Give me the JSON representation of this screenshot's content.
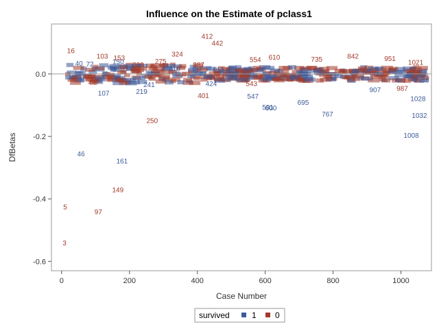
{
  "chart_data": {
    "type": "scatter",
    "title": "Influence on the Estimate of pclass1",
    "xlabel": "Case Number",
    "ylabel": "DfBetas",
    "xlim": [
      -30,
      1090
    ],
    "ylim": [
      -0.63,
      0.16
    ],
    "xticks": [
      0,
      200,
      400,
      600,
      800,
      1000
    ],
    "xtick_labels": [
      "0",
      "200",
      "400",
      "600",
      "800",
      "1000"
    ],
    "yticks": [
      0.0,
      -0.2,
      -0.4,
      -0.6
    ],
    "ytick_labels": [
      "0.0",
      "-0.2",
      "-0.4",
      "-0.6"
    ],
    "reference_line_y": 0.0,
    "grid": false,
    "legend": {
      "title": "survived",
      "placement": "bottom-center",
      "entries": [
        {
          "name": "1",
          "color": "#3d5a99"
        },
        {
          "name": "0",
          "color": "#a23a2a"
        }
      ]
    },
    "series": [
      {
        "name": "1",
        "color": "#3d5a99",
        "points": [
          {
            "x": 46,
            "y": -0.255,
            "label": "46"
          },
          {
            "x": 107,
            "y": -0.06,
            "label": "107"
          },
          {
            "x": 161,
            "y": -0.278,
            "label": "161"
          },
          {
            "x": 219,
            "y": -0.055,
            "label": "219"
          },
          {
            "x": 547,
            "y": -0.07,
            "label": "547"
          },
          {
            "x": 591,
            "y": -0.105,
            "label": "591"
          },
          {
            "x": 600,
            "y": -0.108,
            "label": "600"
          },
          {
            "x": 695,
            "y": -0.09,
            "label": "695"
          },
          {
            "x": 767,
            "y": -0.128,
            "label": "767"
          },
          {
            "x": 907,
            "y": -0.05,
            "label": "907"
          },
          {
            "x": 1008,
            "y": -0.195,
            "label": "1008"
          },
          {
            "x": 1028,
            "y": -0.078,
            "label": "1028"
          },
          {
            "x": 1032,
            "y": -0.132,
            "label": "1032"
          },
          {
            "x": 40,
            "y": 0.035,
            "label": "40"
          },
          {
            "x": 72,
            "y": 0.033,
            "label": "72"
          },
          {
            "x": 150,
            "y": 0.04,
            "label": "150"
          },
          {
            "x": 316,
            "y": 0.018,
            "label": "316"
          },
          {
            "x": 443,
            "y": 0.015,
            "label": "443"
          },
          {
            "x": 241,
            "y": -0.033,
            "label": "241"
          },
          {
            "x": 424,
            "y": -0.03,
            "label": "424"
          },
          {
            "x": 1038,
            "y": -0.018,
            "label": "1038"
          }
        ]
      },
      {
        "name": "0",
        "color": "#a23a2a",
        "points": [
          {
            "x": 3,
            "y": -0.54,
            "label": "3"
          },
          {
            "x": 5,
            "y": -0.425,
            "label": "5"
          },
          {
            "x": 16,
            "y": 0.075,
            "label": "16"
          },
          {
            "x": 97,
            "y": -0.44,
            "label": "97"
          },
          {
            "x": 103,
            "y": 0.058,
            "label": "103"
          },
          {
            "x": 149,
            "y": -0.37,
            "label": "149"
          },
          {
            "x": 153,
            "y": 0.052,
            "label": "153"
          },
          {
            "x": 250,
            "y": -0.148,
            "label": "250"
          },
          {
            "x": 275,
            "y": 0.042,
            "label": "275"
          },
          {
            "x": 324,
            "y": 0.065,
            "label": "324"
          },
          {
            "x": 387,
            "y": 0.03,
            "label": "387"
          },
          {
            "x": 401,
            "y": -0.068,
            "label": "401"
          },
          {
            "x": 412,
            "y": 0.122,
            "label": "412"
          },
          {
            "x": 442,
            "y": 0.1,
            "label": "442"
          },
          {
            "x": 543,
            "y": -0.03,
            "label": "543"
          },
          {
            "x": 554,
            "y": 0.047,
            "label": "554"
          },
          {
            "x": 610,
            "y": 0.055,
            "label": "610"
          },
          {
            "x": 735,
            "y": 0.048,
            "label": "735"
          },
          {
            "x": 842,
            "y": 0.058,
            "label": "842"
          },
          {
            "x": 951,
            "y": 0.05,
            "label": "951"
          },
          {
            "x": 987,
            "y": -0.045,
            "label": "987"
          },
          {
            "x": 1021,
            "y": 0.038,
            "label": "1021"
          },
          {
            "x": 82,
            "y": -0.025,
            "label": "82"
          },
          {
            "x": 209,
            "y": 0.03,
            "label": "209"
          }
        ]
      }
    ]
  }
}
